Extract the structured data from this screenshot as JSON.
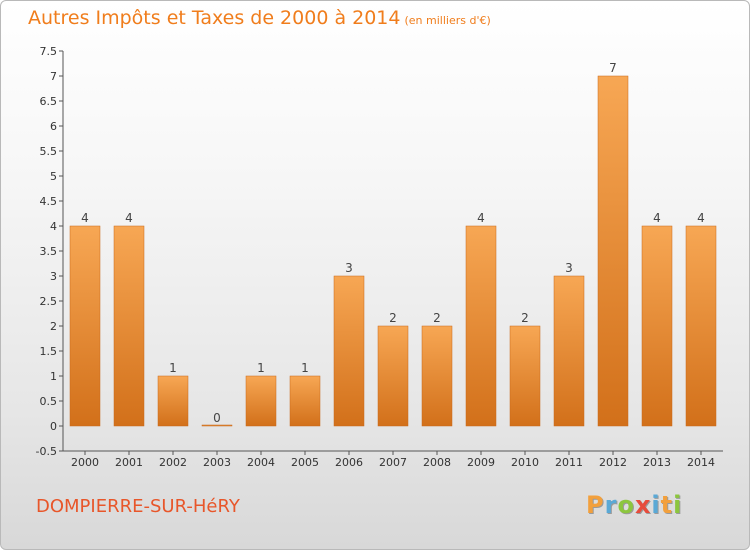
{
  "title": {
    "main": "Autres Impôts et Taxes de 2000 à 2014",
    "unit": "(en milliers d'€)"
  },
  "town": "DOMPIERRE-SUR-HéRY",
  "logo": {
    "letters": [
      "P",
      "r",
      "o",
      "x",
      "i",
      "t",
      "i"
    ],
    "colors": [
      "#f2a03d",
      "#5aa9d6",
      "#8cc63e",
      "#e74c3c",
      "#5aa9d6",
      "#f2a03d",
      "#8cc63e"
    ]
  },
  "colors": {
    "bar_light": "#f7a754",
    "bar_dark": "#d2701a",
    "title": "#f07d1c",
    "town": "#e8562a"
  },
  "chart_data": {
    "type": "bar",
    "categories": [
      "2000",
      "2001",
      "2002",
      "2003",
      "2004",
      "2005",
      "2006",
      "2007",
      "2008",
      "2009",
      "2010",
      "2011",
      "2012",
      "2013",
      "2014"
    ],
    "values": [
      4,
      4,
      1,
      0,
      1,
      1,
      3,
      2,
      2,
      4,
      2,
      3,
      7,
      4,
      4
    ],
    "data_labels": [
      "4",
      "4",
      "1",
      "0",
      "1",
      "1",
      "3",
      "2",
      "2",
      "4",
      "2",
      "3",
      "7",
      "4",
      "4"
    ],
    "y_ticks": [
      "-0.5",
      "0",
      "0.5",
      "1",
      "1.5",
      "2",
      "2.5",
      "3",
      "3.5",
      "4",
      "4.5",
      "5",
      "5.5",
      "6",
      "6.5",
      "7",
      "7.5"
    ],
    "ylim": [
      -0.5,
      7.5
    ],
    "grid": false,
    "legend": "none"
  }
}
